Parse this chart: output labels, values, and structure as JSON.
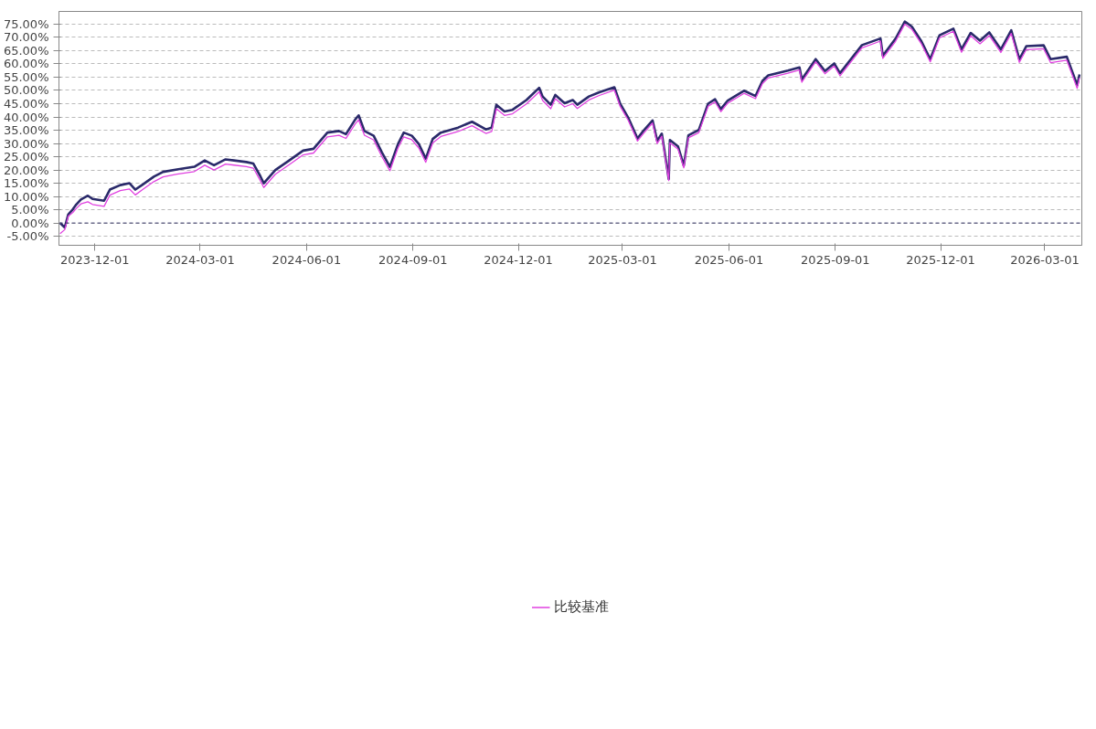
{
  "chart_data": {
    "type": "line",
    "x": [
      "2023-11-01",
      "2023-11-05",
      "2023-11-08",
      "2023-11-12",
      "2023-11-15",
      "2023-11-19",
      "2023-11-25",
      "2023-11-29",
      "2023-12-09",
      "2023-12-14",
      "2023-12-23",
      "2023-12-31",
      "2024-01-05",
      "2024-01-11",
      "2024-01-21",
      "2024-01-29",
      "2024-02-10",
      "2024-02-25",
      "2024-03-05",
      "2024-03-13",
      "2024-03-23",
      "2024-04-10",
      "2024-04-16",
      "2024-04-22",
      "2024-04-25",
      "2024-05-05",
      "2024-05-17",
      "2024-05-29",
      "2024-06-07",
      "2024-06-19",
      "2024-06-29",
      "2024-07-05",
      "2024-07-13",
      "2024-07-16",
      "2024-07-21",
      "2024-07-29",
      "2024-08-05",
      "2024-08-12",
      "2024-08-19",
      "2024-08-24",
      "2024-08-31",
      "2024-09-06",
      "2024-09-12",
      "2024-09-18",
      "2024-09-25",
      "2024-10-10",
      "2024-10-22",
      "2024-11-03",
      "2024-11-08",
      "2024-11-12",
      "2024-11-19",
      "2024-11-26",
      "2024-12-08",
      "2024-12-19",
      "2024-12-22",
      "2024-12-29",
      "2025-01-02",
      "2025-01-10",
      "2025-01-17",
      "2025-01-21",
      "2025-01-31",
      "2025-02-09",
      "2025-02-22",
      "2025-02-27",
      "2025-03-06",
      "2025-03-14",
      "2025-03-19",
      "2025-03-27",
      "2025-03-31",
      "2025-04-04",
      "2025-04-10",
      "2025-04-11",
      "2025-04-18",
      "2025-04-23",
      "2025-04-27",
      "2025-05-06",
      "2025-05-14",
      "2025-05-20",
      "2025-05-25",
      "2025-05-31",
      "2025-06-14",
      "2025-06-24",
      "2025-06-30",
      "2025-07-05",
      "2025-07-22",
      "2025-08-01",
      "2025-08-03",
      "2025-08-15",
      "2025-08-23",
      "2025-08-31",
      "2025-09-05",
      "2025-09-24",
      "2025-10-10",
      "2025-10-12",
      "2025-10-23",
      "2025-10-31",
      "2025-11-06",
      "2025-11-14",
      "2025-11-22",
      "2025-11-30",
      "2025-12-12",
      "2025-12-19",
      "2025-12-27",
      "2026-01-04",
      "2026-01-12",
      "2026-01-22",
      "2026-01-31",
      "2026-02-07",
      "2026-02-13",
      "2026-02-28",
      "2026-03-06",
      "2026-03-20",
      "2026-03-29",
      "2026-03-31"
    ],
    "series": [
      {
        "color": "#2a2a6a",
        "values": [
          0.0,
          -1.7,
          3.2,
          5.2,
          7.0,
          8.9,
          10.3,
          9.1,
          8.4,
          12.6,
          14.3,
          15.0,
          12.6,
          14.4,
          17.5,
          19.3,
          20.2,
          21.2,
          23.6,
          21.8,
          24.0,
          23.0,
          22.4,
          17.7,
          15.0,
          20.0,
          23.6,
          27.3,
          28.0,
          34.1,
          34.7,
          33.5,
          39.0,
          40.6,
          34.7,
          32.9,
          26.7,
          21.2,
          29.8,
          34.1,
          32.9,
          29.8,
          24.3,
          31.7,
          34.1,
          36.0,
          38.2,
          35.3,
          36.0,
          44.6,
          42.1,
          42.7,
          46.4,
          51.0,
          47.7,
          44.6,
          48.3,
          45.2,
          46.4,
          44.6,
          47.7,
          49.3,
          51.2,
          45.0,
          39.7,
          31.9,
          34.7,
          38.7,
          31.0,
          33.7,
          16.6,
          31.3,
          28.9,
          21.6,
          33.1,
          35.1,
          45.0,
          46.7,
          43.0,
          46.2,
          49.9,
          47.9,
          53.6,
          55.7,
          57.5,
          58.7,
          54.1,
          61.8,
          57.3,
          60.2,
          56.5,
          67.1,
          69.6,
          63.1,
          69.5,
          76.0,
          74.1,
          68.8,
          61.8,
          70.8,
          73.3,
          65.5,
          71.7,
          68.8,
          71.9,
          65.5,
          72.7,
          61.8,
          66.7,
          67.0,
          61.8,
          62.7,
          52.0,
          56.0
        ]
      },
      {
        "name": "比较基准",
        "color": "#e040e0",
        "values": [
          -4.0,
          -2.5,
          2.5,
          4.0,
          5.5,
          7.2,
          8.0,
          7.0,
          6.3,
          10.5,
          12.2,
          12.8,
          10.6,
          12.5,
          15.6,
          17.4,
          18.4,
          19.4,
          21.8,
          20.0,
          22.2,
          21.3,
          20.7,
          16.0,
          13.4,
          18.4,
          22.0,
          25.7,
          26.4,
          32.5,
          33.1,
          31.9,
          37.4,
          38.9,
          33.1,
          31.3,
          25.1,
          19.7,
          28.3,
          32.5,
          31.4,
          28.3,
          22.9,
          30.2,
          32.6,
          34.5,
          36.7,
          33.8,
          34.5,
          43.1,
          40.6,
          41.2,
          44.9,
          49.5,
          46.2,
          43.1,
          46.9,
          43.8,
          45.0,
          43.2,
          46.4,
          48.1,
          50.1,
          44.0,
          38.7,
          30.9,
          33.7,
          37.7,
          30.0,
          32.7,
          16.0,
          30.3,
          27.9,
          20.8,
          32.1,
          34.1,
          44.0,
          45.7,
          42.0,
          45.2,
          48.9,
          46.9,
          52.6,
          54.7,
          56.5,
          57.7,
          53.1,
          60.8,
          56.3,
          59.2,
          55.5,
          66.1,
          68.6,
          62.1,
          68.5,
          75.0,
          73.1,
          67.8,
          60.8,
          69.8,
          72.3,
          64.4,
          70.6,
          67.6,
          70.7,
          64.3,
          71.5,
          60.6,
          65.4,
          65.7,
          60.5,
          61.4,
          50.8,
          54.8
        ]
      }
    ],
    "xlim": [
      "2023-10-31",
      "2026-04-02"
    ],
    "xticks": [
      {
        "value": "2023-12-01",
        "label": "2023-12-01"
      },
      {
        "value": "2024-03-01",
        "label": "2024-03-01"
      },
      {
        "value": "2024-06-01",
        "label": "2024-06-01"
      },
      {
        "value": "2024-09-01",
        "label": "2024-09-01"
      },
      {
        "value": "2024-12-01",
        "label": "2024-12-01"
      },
      {
        "value": "2025-03-01",
        "label": "2025-03-01"
      },
      {
        "value": "2025-06-01",
        "label": "2025-06-01"
      },
      {
        "value": "2025-09-01",
        "label": "2025-09-01"
      },
      {
        "value": "2025-12-01",
        "label": "2025-12-01"
      },
      {
        "value": "2026-03-01",
        "label": "2026-03-01"
      }
    ],
    "ylim": [
      -8.4,
      79.8
    ],
    "yticks": [
      {
        "value": -5,
        "label": "-5.00%"
      },
      {
        "value": 0,
        "label": "0.00%"
      },
      {
        "value": 5,
        "label": "5.00%"
      },
      {
        "value": 10,
        "label": "10.00%"
      },
      {
        "value": 15,
        "label": "15.00%"
      },
      {
        "value": 20,
        "label": "20.00%"
      },
      {
        "value": 25,
        "label": "25.00%"
      },
      {
        "value": 30,
        "label": "30.00%"
      },
      {
        "value": 35,
        "label": "35.00%"
      },
      {
        "value": 40,
        "label": "40.00%"
      },
      {
        "value": 45,
        "label": "45.00%"
      },
      {
        "value": 50,
        "label": "50.00%"
      },
      {
        "value": 55,
        "label": "55.00%"
      },
      {
        "value": 60,
        "label": "60.00%"
      },
      {
        "value": 65,
        "label": "65.00%"
      },
      {
        "value": 70,
        "label": "70.00%"
      },
      {
        "value": 75,
        "label": "75.00%"
      }
    ],
    "ref_lines": [
      {
        "axis": "y",
        "value": 0,
        "color": "#3a3a6a",
        "line_style": "dashed"
      }
    ],
    "grid": "y",
    "legend": "bottom",
    "line_style": "solid"
  }
}
